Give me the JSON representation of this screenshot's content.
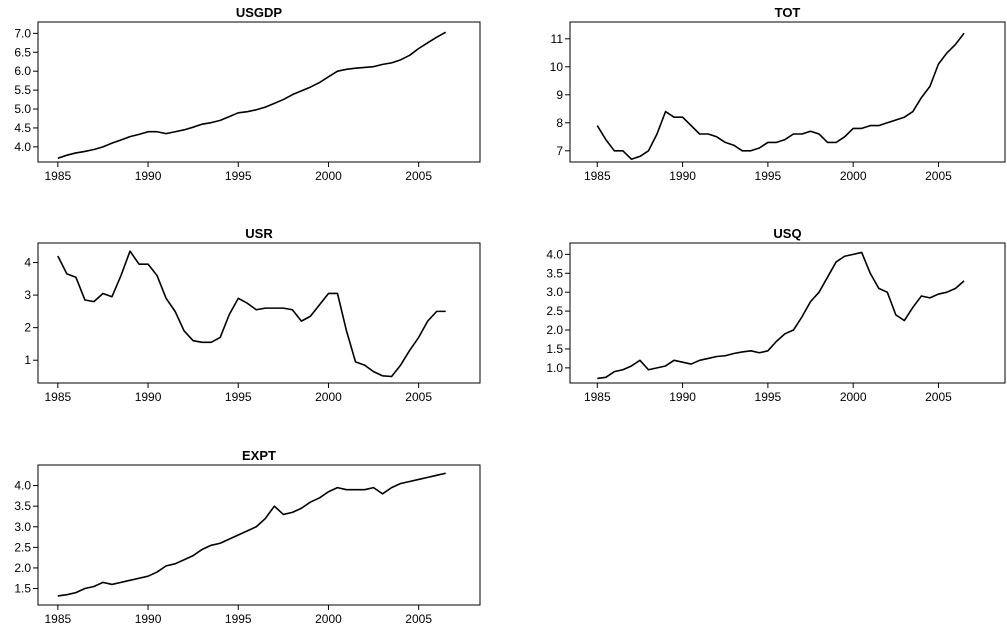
{
  "chart_data": [
    {
      "type": "line",
      "title": "USGDP",
      "color": "#000000",
      "x": [
        1985,
        1985.5,
        1986,
        1986.5,
        1987,
        1987.5,
        1988,
        1988.5,
        1989,
        1989.5,
        1990,
        1990.5,
        1991,
        1991.5,
        1992,
        1992.5,
        1993,
        1993.5,
        1994,
        1994.5,
        1995,
        1995.5,
        1996,
        1996.5,
        1997,
        1997.5,
        1998,
        1998.5,
        1999,
        1999.5,
        2000,
        2000.5,
        2001,
        2001.5,
        2002,
        2002.5,
        2003,
        2003.5,
        2004,
        2004.5,
        2005,
        2005.5,
        2006,
        2006.5
      ],
      "values": [
        3.7,
        3.78,
        3.84,
        3.88,
        3.93,
        4.0,
        4.1,
        4.18,
        4.27,
        4.33,
        4.4,
        4.4,
        4.35,
        4.4,
        4.45,
        4.52,
        4.6,
        4.64,
        4.7,
        4.8,
        4.9,
        4.93,
        4.98,
        5.05,
        5.15,
        5.25,
        5.38,
        5.48,
        5.58,
        5.7,
        5.85,
        6.0,
        6.05,
        6.08,
        6.1,
        6.12,
        6.18,
        6.22,
        6.3,
        6.42,
        6.6,
        6.75,
        6.9,
        7.03
      ],
      "xlim": [
        1983.9,
        2008.4
      ],
      "xticks": [
        1985,
        1990,
        1995,
        2000,
        2005
      ],
      "ylim": [
        3.6,
        7.3
      ],
      "yticks": [
        {
          "value": 4,
          "label": "4.0"
        },
        4.5,
        {
          "value": 5,
          "label": "5.0"
        },
        5.5,
        {
          "value": 6,
          "label": "6.0"
        },
        6.5,
        {
          "value": 7,
          "label": "7.0"
        }
      ]
    },
    {
      "type": "line",
      "title": "TOT",
      "color": "#000000",
      "x": [
        1985,
        1985.5,
        1986,
        1986.5,
        1987,
        1987.5,
        1988,
        1988.5,
        1989,
        1989.5,
        1990,
        1990.5,
        1991,
        1991.5,
        1992,
        1992.5,
        1993,
        1993.5,
        1994,
        1994.5,
        1995,
        1995.5,
        1996,
        1996.5,
        1997,
        1997.5,
        1998,
        1998.5,
        1999,
        1999.5,
        2000,
        2000.5,
        2001,
        2001.5,
        2002,
        2002.5,
        2003,
        2003.5,
        2004,
        2004.5,
        2005,
        2005.5,
        2006,
        2006.5
      ],
      "values": [
        7.9,
        7.4,
        7.0,
        7.0,
        6.7,
        6.8,
        7.0,
        7.6,
        8.4,
        8.2,
        8.2,
        7.9,
        7.6,
        7.6,
        7.5,
        7.3,
        7.2,
        7.0,
        7.0,
        7.1,
        7.3,
        7.3,
        7.4,
        7.6,
        7.6,
        7.7,
        7.6,
        7.3,
        7.3,
        7.5,
        7.8,
        7.8,
        7.9,
        7.9,
        8.0,
        8.1,
        8.2,
        8.4,
        8.9,
        9.3,
        10.1,
        10.5,
        10.8,
        11.2
      ],
      "xlim": [
        1983.4,
        2008.9
      ],
      "xticks": [
        1985,
        1990,
        1995,
        2000,
        2005
      ],
      "ylim": [
        6.6,
        11.6
      ],
      "yticks": [
        7,
        8,
        9,
        10,
        11
      ]
    },
    {
      "type": "line",
      "title": "USR",
      "color": "#000000",
      "x": [
        1985,
        1985.5,
        1986,
        1986.5,
        1987,
        1987.5,
        1988,
        1988.5,
        1989,
        1989.5,
        1990,
        1990.5,
        1991,
        1991.5,
        1992,
        1992.5,
        1993,
        1993.5,
        1994,
        1994.5,
        1995,
        1995.5,
        1996,
        1996.5,
        1997,
        1997.5,
        1998,
        1998.5,
        1999,
        1999.5,
        2000,
        2000.5,
        2001,
        2001.5,
        2002,
        2002.5,
        2003,
        2003.5,
        2004,
        2004.5,
        2005,
        2005.5,
        2006,
        2006.5
      ],
      "values": [
        4.2,
        3.65,
        3.55,
        2.85,
        2.8,
        3.05,
        2.95,
        3.6,
        4.35,
        3.95,
        3.95,
        3.6,
        2.9,
        2.5,
        1.9,
        1.6,
        1.55,
        1.55,
        1.7,
        2.4,
        2.9,
        2.75,
        2.55,
        2.6,
        2.6,
        2.6,
        2.55,
        2.2,
        2.35,
        2.7,
        3.05,
        3.05,
        1.9,
        0.95,
        0.85,
        0.65,
        0.52,
        0.5,
        0.85,
        1.3,
        1.7,
        2.2,
        2.5,
        2.5
      ],
      "xlim": [
        1983.9,
        2008.4
      ],
      "xticks": [
        1985,
        1990,
        1995,
        2000,
        2005
      ],
      "ylim": [
        0.3,
        4.6
      ],
      "yticks": [
        1,
        2,
        3,
        4
      ]
    },
    {
      "type": "line",
      "title": "USQ",
      "color": "#000000",
      "x": [
        1985,
        1985.5,
        1986,
        1986.5,
        1987,
        1987.5,
        1988,
        1988.5,
        1989,
        1989.5,
        1990,
        1990.5,
        1991,
        1991.5,
        1992,
        1992.5,
        1993,
        1993.5,
        1994,
        1994.5,
        1995,
        1995.5,
        1996,
        1996.5,
        1997,
        1997.5,
        1998,
        1998.5,
        1999,
        1999.5,
        2000,
        2000.5,
        2001,
        2001.5,
        2002,
        2002.5,
        2003,
        2003.5,
        2004,
        2004.5,
        2005,
        2005.5,
        2006,
        2006.5
      ],
      "values": [
        0.72,
        0.75,
        0.9,
        0.95,
        1.05,
        1.2,
        0.95,
        1.0,
        1.05,
        1.2,
        1.15,
        1.1,
        1.2,
        1.25,
        1.3,
        1.32,
        1.38,
        1.42,
        1.45,
        1.4,
        1.45,
        1.7,
        1.9,
        2.0,
        2.35,
        2.75,
        3.0,
        3.4,
        3.8,
        3.95,
        4.0,
        4.05,
        3.5,
        3.1,
        3.0,
        2.4,
        2.25,
        2.6,
        2.9,
        2.85,
        2.95,
        3.0,
        3.1,
        3.3
      ],
      "xlim": [
        1983.4,
        2008.9
      ],
      "xticks": [
        1985,
        1990,
        1995,
        2000,
        2005
      ],
      "ylim": [
        0.6,
        4.3
      ],
      "yticks": [
        {
          "value": 1,
          "label": "1.0"
        },
        1.5,
        {
          "value": 2,
          "label": "2.0"
        },
        2.5,
        {
          "value": 3,
          "label": "3.0"
        },
        3.5,
        {
          "value": 4,
          "label": "4.0"
        }
      ]
    },
    {
      "type": "line",
      "title": "EXPT",
      "color": "#000000",
      "x": [
        1985,
        1985.5,
        1986,
        1986.5,
        1987,
        1987.5,
        1988,
        1988.5,
        1989,
        1989.5,
        1990,
        1990.5,
        1991,
        1991.5,
        1992,
        1992.5,
        1993,
        1993.5,
        1994,
        1994.5,
        1995,
        1995.5,
        1996,
        1996.5,
        1997,
        1997.5,
        1998,
        1998.5,
        1999,
        1999.5,
        2000,
        2000.5,
        2001,
        2001.5,
        2002,
        2002.5,
        2003,
        2003.5,
        2004,
        2004.5,
        2005,
        2005.5,
        2006,
        2006.5
      ],
      "values": [
        1.32,
        1.35,
        1.4,
        1.5,
        1.55,
        1.65,
        1.6,
        1.65,
        1.7,
        1.75,
        1.8,
        1.9,
        2.05,
        2.1,
        2.2,
        2.3,
        2.45,
        2.55,
        2.6,
        2.7,
        2.8,
        2.9,
        3.0,
        3.2,
        3.5,
        3.3,
        3.35,
        3.45,
        3.6,
        3.7,
        3.85,
        3.95,
        3.9,
        3.9,
        3.9,
        3.95,
        3.8,
        3.95,
        4.05,
        4.1,
        4.15,
        4.2,
        4.25,
        4.3
      ],
      "xlim": [
        1983.9,
        2008.4
      ],
      "xticks": [
        1985,
        1990,
        1995,
        2000,
        2005
      ],
      "ylim": [
        1.1,
        4.5
      ],
      "yticks": [
        1.5,
        {
          "value": 2,
          "label": "2.0"
        },
        2.5,
        {
          "value": 3,
          "label": "3.0"
        },
        3.5,
        {
          "value": 4,
          "label": "4.0"
        }
      ]
    }
  ]
}
